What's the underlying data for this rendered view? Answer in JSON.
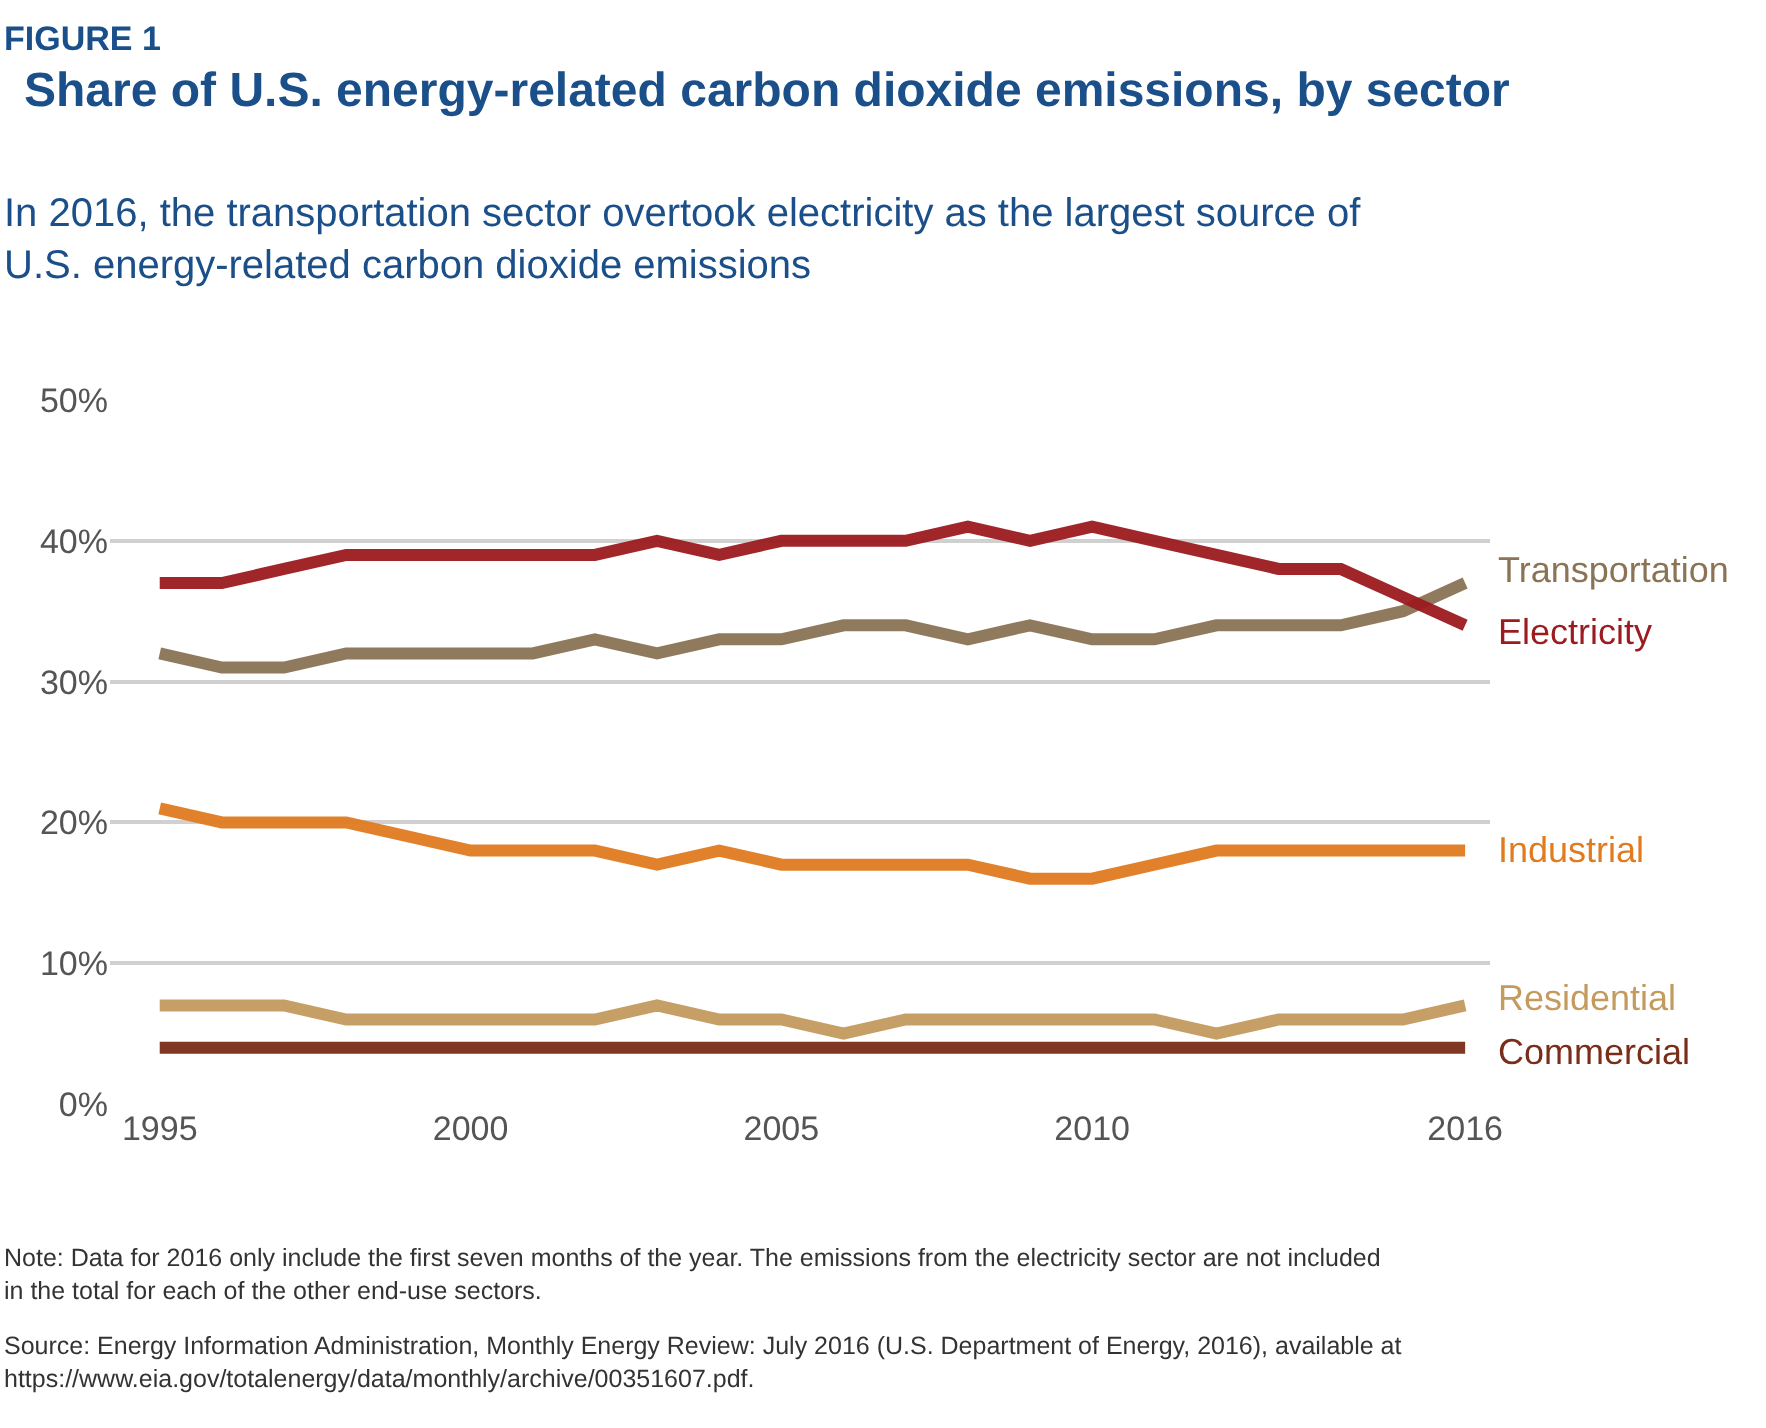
{
  "chart_data": {
    "type": "line",
    "title": "Share of U.S. energy-related carbon dioxide emissions, by sector",
    "subtitle": "In 2016, the transportation sector overtook electricity as the largest source of U.S. energy-related carbon dioxide emissions",
    "x": [
      1995,
      1996,
      1997,
      1998,
      1999,
      2000,
      2001,
      2002,
      2003,
      2004,
      2005,
      2006,
      2007,
      2008,
      2009,
      2010,
      2011,
      2012,
      2013,
      2014,
      2015,
      2016
    ],
    "series": [
      {
        "name": "Transportation",
        "color": "#8b7355",
        "values": [
          32,
          31,
          31,
          32,
          32,
          32,
          32,
          33,
          32,
          33,
          33,
          34,
          34,
          33,
          34,
          33,
          33,
          34,
          34,
          34,
          35,
          37
        ]
      },
      {
        "name": "Electricity",
        "color": "#9b1b1e",
        "values": [
          37,
          37,
          38,
          39,
          39,
          39,
          39,
          39,
          40,
          39,
          40,
          40,
          40,
          41,
          40,
          41,
          40,
          39,
          38,
          38,
          36,
          34
        ]
      },
      {
        "name": "Industrial",
        "color": "#e07b20",
        "values": [
          21,
          20,
          20,
          20,
          19,
          18,
          18,
          18,
          17,
          18,
          17,
          17,
          17,
          17,
          16,
          16,
          17,
          18,
          18,
          18,
          18,
          18
        ]
      },
      {
        "name": "Residential",
        "color": "#c49a5e",
        "values": [
          7,
          7,
          7,
          6,
          6,
          6,
          6,
          6,
          7,
          6,
          6,
          5,
          6,
          6,
          6,
          6,
          6,
          5,
          6,
          6,
          6,
          7
        ]
      },
      {
        "name": "Commercial",
        "color": "#7a2e1a",
        "values": [
          4,
          4,
          4,
          4,
          4,
          4,
          4,
          4,
          4,
          4,
          4,
          4,
          4,
          4,
          4,
          4,
          4,
          4,
          4,
          4,
          4,
          4
        ]
      }
    ],
    "xlim": [
      1994.2,
      2016.4
    ],
    "xticks": [
      1995,
      2000,
      2005,
      2010,
      2016
    ],
    "ylim": [
      0,
      50
    ],
    "yticks": [
      {
        "value": 0,
        "label": "0%"
      },
      {
        "value": 10,
        "label": "10%"
      },
      {
        "value": 20,
        "label": "20%"
      },
      {
        "value": 30,
        "label": "30%"
      },
      {
        "value": 40,
        "label": "40%"
      },
      {
        "value": 50,
        "label": "50%"
      }
    ],
    "grid": "y",
    "legend": false,
    "marker": "none",
    "line_style": "solid",
    "annotations": [
      "FIGURE 1",
      "Note: Data for 2016 only include the first seven months of the year. The emissions from the electricity sector are not included in the total for each of the other end-use sectors.",
      "Source: Energy Information Administration, Monthly Energy Review: July 2016 (U.S. Department of Energy, 2016), available at https://www.eia.gov/totalenergy/data/monthly/archive/00351607.pdf."
    ]
  }
}
